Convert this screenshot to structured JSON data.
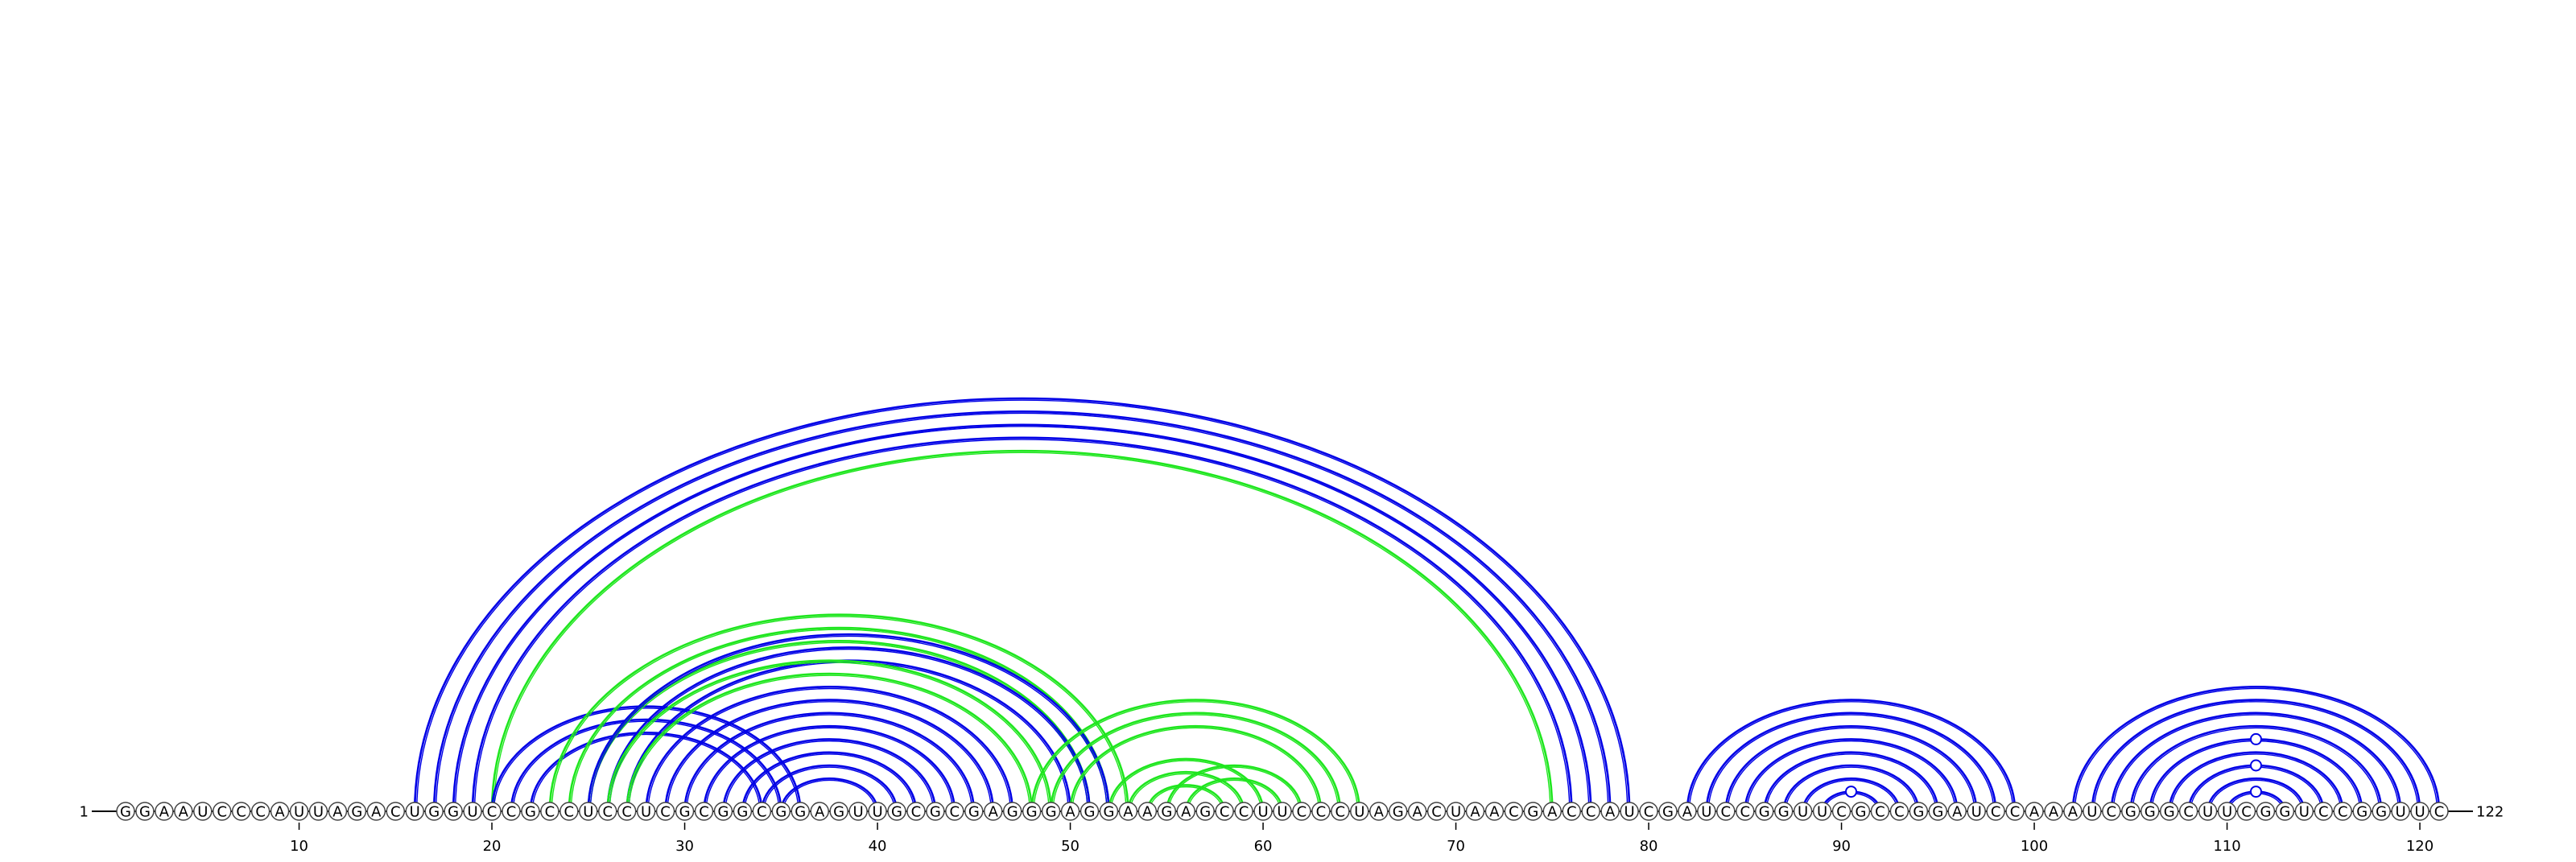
{
  "diagram": {
    "sequence": "GGAAUCCCAUUAGACUGGUCCGCCUCCUCGCGGCGGAGUUGCGCGAGGGAGGAAGAGCCUUCCCUAGACUAACGACCAUCGAUCCGGUUCGCCGGAUCCAAAUCGGGCUUCGGUCCGGUUC",
    "start_label": "1",
    "end_label": "122",
    "ticks": [
      10,
      20,
      30,
      40,
      50,
      60,
      70,
      80,
      90,
      100,
      110,
      120
    ],
    "colors": {
      "blue": "#0000e6",
      "green": "#1ee61e",
      "text": "#000000",
      "circle_stroke": "#444444"
    },
    "arc_groups": [
      {
        "color": "blue",
        "pairs": [
          [
            16,
            79
          ],
          [
            17,
            78
          ],
          [
            18,
            77
          ],
          [
            19,
            76
          ]
        ]
      },
      {
        "color": "green",
        "pairs": [
          [
            20,
            75
          ]
        ]
      },
      {
        "color": "blue",
        "pairs": [
          [
            20,
            36
          ],
          [
            21,
            35
          ],
          [
            22,
            34
          ]
        ]
      },
      {
        "color": "green",
        "pairs": [
          [
            23,
            53
          ],
          [
            24,
            52
          ],
          [
            25,
            51
          ]
        ]
      },
      {
        "color": "blue",
        "pairs": [
          [
            25,
            52
          ],
          [
            26,
            51
          ],
          [
            27,
            50
          ]
        ]
      },
      {
        "color": "green",
        "pairs": [
          [
            26,
            49
          ],
          [
            27,
            48
          ]
        ]
      },
      {
        "color": "blue",
        "pairs": [
          [
            28,
            47
          ],
          [
            29,
            46
          ],
          [
            30,
            45
          ],
          [
            31,
            44
          ],
          [
            32,
            43
          ],
          [
            33,
            42
          ],
          [
            34,
            41
          ],
          [
            35,
            40
          ]
        ]
      },
      {
        "color": "green",
        "pairs": [
          [
            48,
            65
          ],
          [
            49,
            64
          ],
          [
            50,
            63
          ]
        ]
      },
      {
        "color": "green",
        "pairs": [
          [
            52,
            60
          ],
          [
            53,
            59
          ],
          [
            54,
            58
          ]
        ]
      },
      {
        "color": "green",
        "pairs": [
          [
            55,
            62
          ],
          [
            56,
            61
          ]
        ]
      },
      {
        "color": "blue",
        "pairs": [
          [
            82,
            99
          ],
          [
            83,
            98
          ],
          [
            84,
            97
          ],
          [
            85,
            96
          ],
          [
            86,
            95
          ],
          [
            87,
            94
          ],
          [
            88,
            93
          ],
          [
            89,
            92
          ]
        ]
      },
      {
        "color": "blue",
        "pairs": [
          [
            102,
            121
          ],
          [
            103,
            120
          ],
          [
            104,
            119
          ],
          [
            105,
            118
          ],
          [
            106,
            117
          ],
          [
            107,
            116
          ],
          [
            108,
            115
          ],
          [
            109,
            114
          ],
          [
            110,
            113
          ]
        ]
      }
    ],
    "markers": [
      {
        "color": "blue",
        "between": [
          89,
          92
        ],
        "pair": [
          89,
          92
        ]
      },
      {
        "color": "blue",
        "between": [
          110,
          113
        ],
        "pair": [
          110,
          113
        ]
      },
      {
        "color": "blue",
        "between": [
          108,
          115
        ],
        "pair": [
          108,
          115
        ]
      },
      {
        "color": "blue",
        "between": [
          106,
          117
        ],
        "pair": [
          106,
          117
        ]
      }
    ]
  }
}
